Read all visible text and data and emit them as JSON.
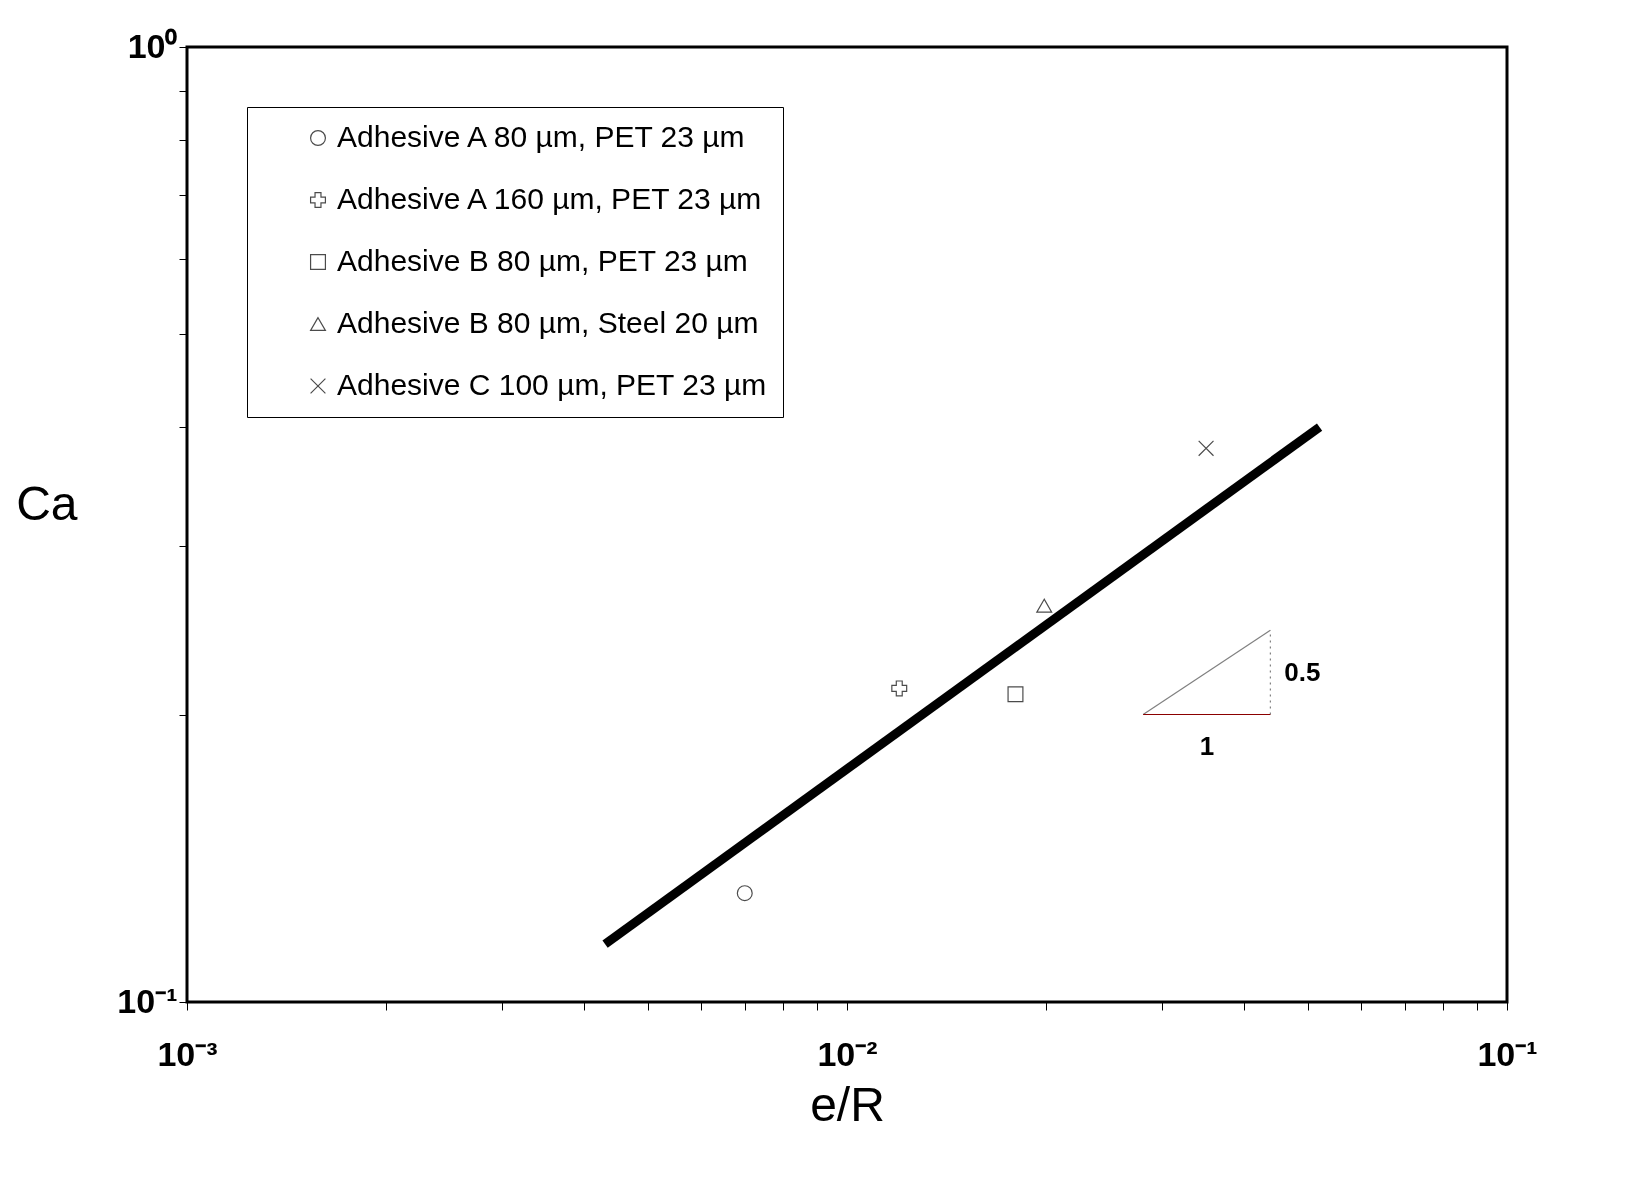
{
  "chart_data": {
    "type": "scatter",
    "xlabel": "e/R",
    "ylabel": "Ca",
    "log": "xy",
    "grid": false,
    "legend": "top left",
    "xlim": [
      0.001,
      0.1
    ],
    "ylim": [
      0.1,
      1
    ],
    "xticks": [
      {
        "value": 0.001,
        "label": "10⁻³"
      },
      {
        "value": 0.002,
        "label": null
      },
      {
        "value": 0.003,
        "label": null
      },
      {
        "value": 0.004,
        "label": null
      },
      {
        "value": 0.005,
        "label": null
      },
      {
        "value": 0.006,
        "label": null
      },
      {
        "value": 0.007,
        "label": null
      },
      {
        "value": 0.008,
        "label": null
      },
      {
        "value": 0.009,
        "label": null
      },
      {
        "value": 0.01,
        "label": "10⁻²"
      },
      {
        "value": 0.02,
        "label": null
      },
      {
        "value": 0.03,
        "label": null
      },
      {
        "value": 0.04,
        "label": null
      },
      {
        "value": 0.05,
        "label": null
      },
      {
        "value": 0.06,
        "label": null
      },
      {
        "value": 0.07,
        "label": null
      },
      {
        "value": 0.08,
        "label": null
      },
      {
        "value": 0.09,
        "label": null
      },
      {
        "value": 0.1,
        "label": "10⁻¹"
      }
    ],
    "yticks": [
      {
        "value": 0.1,
        "label": "10⁻¹"
      },
      {
        "value": 0.2,
        "label": null
      },
      {
        "value": 0.3,
        "label": null
      },
      {
        "value": 0.4,
        "label": null
      },
      {
        "value": 0.5,
        "label": null
      },
      {
        "value": 0.6,
        "label": null
      },
      {
        "value": 0.7,
        "label": null
      },
      {
        "value": 0.8,
        "label": null
      },
      {
        "value": 0.9,
        "label": null
      },
      {
        "value": 1,
        "label": "10⁰"
      }
    ],
    "series": [
      {
        "name": "Adhesive A 80 µm, PET 23 µm",
        "color": "#000000",
        "marker": "circle",
        "x": [
          0.007
        ],
        "values": [
          0.13
        ]
      },
      {
        "name": "Adhesive A 160 µm, PET 23 µm",
        "color": "#000000",
        "marker": "cross",
        "x": [
          0.012
        ],
        "values": [
          0.213
        ]
      },
      {
        "name": "Adhesive B 80 µm, PET 23 µm",
        "color": "#000000",
        "marker": "square",
        "x": [
          0.018
        ],
        "values": [
          0.21
        ]
      },
      {
        "name": "Adhesive B 80 µm, Steel 20 µm",
        "color": "#000000",
        "marker": "triangle",
        "x": [
          0.0199
        ],
        "values": [
          0.26
        ]
      },
      {
        "name": "Adhesive C 100 µm, PET 23 µm",
        "color": "#000000",
        "marker": "x",
        "x": [
          0.035
        ],
        "values": [
          0.38
        ]
      },
      {
        "type": "line",
        "color": "#000000",
        "x": [
          0.0043,
          0.052
        ],
        "values": [
          0.115,
          0.4
        ]
      },
      {
        "type": "line",
        "color": "#808080",
        "x": [
          0.0281,
          0.0438
        ],
        "values": [
          0.2,
          0.245
        ]
      },
      {
        "type": "line",
        "color": "#808080",
        "line_style": "dotted",
        "x": [
          0.0438,
          0.0438
        ],
        "values": [
          0.2,
          0.245
        ]
      },
      {
        "type": "line",
        "color": "#8b0000",
        "x": [
          0.0281,
          0.0438
        ],
        "values": [
          0.2,
          0.2
        ]
      }
    ],
    "annotations": [
      {
        "text": "0.5",
        "x": 0.0438,
        "y": 0.221
      },
      {
        "text": "1",
        "x": 0.0351,
        "y": 0.2
      }
    ]
  }
}
